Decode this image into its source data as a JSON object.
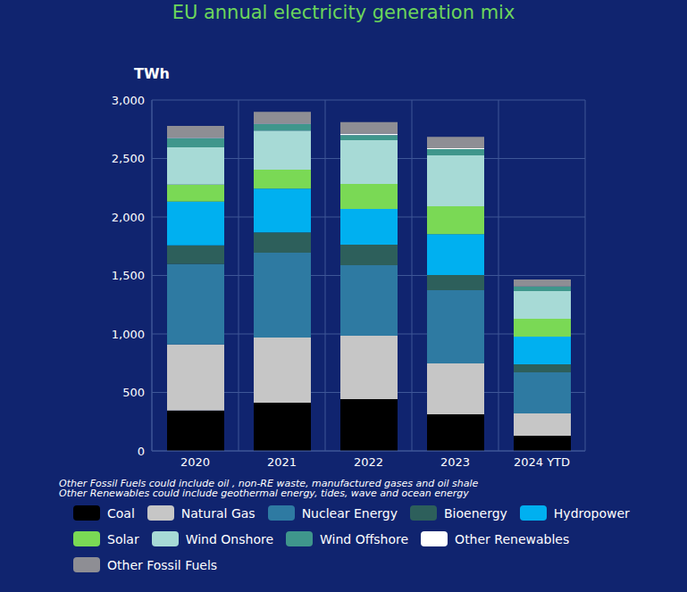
{
  "chart_data": {
    "type": "bar",
    "title": "EU annual electricity generation mix",
    "y_label": "TWh",
    "stacked": true,
    "grid": true,
    "legend": "bottom",
    "notes": [
      "Other Fossil Fuels could include oil , non-RE waste, manufactured gases and oil shale",
      "Other Renewables could include geothermal energy, tides, wave and ocean energy"
    ],
    "categories": [
      "2020",
      "2021",
      "2022",
      "2023",
      "2024 YTD"
    ],
    "ylim": [
      0,
      3000
    ],
    "yticks": [
      0,
      500,
      {
        "value": 1000,
        "label": "1,000"
      },
      {
        "value": 1500,
        "label": "1,500"
      },
      {
        "value": 2000,
        "label": "2,000"
      },
      {
        "value": 2500,
        "label": "2,500"
      },
      {
        "value": 3000,
        "label": "3,000"
      }
    ],
    "series": [
      {
        "name": "Coal",
        "color": "#000000",
        "values": [
          345,
          412,
          443,
          313,
          130
        ]
      },
      {
        "name": "Natural Gas",
        "color": "#c6c6c6",
        "values": [
          565,
          557,
          542,
          435,
          190
        ]
      },
      {
        "name": "Nuclear Energy",
        "color": "#2e7aa2",
        "values": [
          687,
          725,
          602,
          626,
          352
        ]
      },
      {
        "name": "Bioenergy",
        "color": "#2d5f5b",
        "values": [
          160,
          175,
          176,
          129,
          69
        ]
      },
      {
        "name": "Hydropower",
        "color": "#00b0f0",
        "values": [
          374,
          374,
          305,
          351,
          236
        ]
      },
      {
        "name": "Solar",
        "color": "#7ad955",
        "values": [
          145,
          161,
          214,
          237,
          153
        ]
      },
      {
        "name": "Wind Onshore",
        "color": "#a7dad6",
        "values": [
          320,
          335,
          374,
          435,
          236
        ]
      },
      {
        "name": "Wind Offshore",
        "color": "#3f968c",
        "values": [
          77,
          54,
          45,
          54,
          38
        ]
      },
      {
        "name": "Other Renewables",
        "color": "#ffffff",
        "values": [
          5,
          5,
          10,
          8,
          3
        ]
      },
      {
        "name": "Other Fossil Fuels",
        "color": "#8e8e94",
        "values": [
          100,
          100,
          100,
          98,
          58
        ]
      }
    ]
  }
}
